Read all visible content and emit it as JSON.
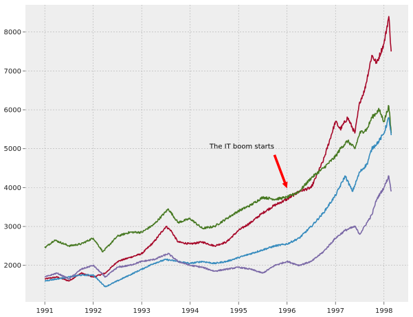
{
  "chart_data": {
    "type": "line",
    "title": "",
    "xlabel": "",
    "ylabel": "",
    "xlim": [
      1990.6,
      1998.5
    ],
    "ylim": [
      1060,
      8700
    ],
    "grid": true,
    "x_ticks": [
      1991,
      1992,
      1993,
      1994,
      1995,
      1996,
      1997,
      1998
    ],
    "x_tick_labels": [
      "1991",
      "1992",
      "1993",
      "1994",
      "1995",
      "1996",
      "1997",
      "1998"
    ],
    "y_ticks": [
      2000,
      3000,
      4000,
      5000,
      6000,
      7000,
      8000
    ],
    "y_tick_labels": [
      "2000",
      "3000",
      "4000",
      "5000",
      "6000",
      "7000",
      "8000"
    ],
    "colors": {
      "background": "#eeeeee",
      "grid": "#b2b2b2",
      "annotation_arrow": "#ff0000"
    },
    "series": [
      {
        "color": "#a60628",
        "x": [
          1991.0,
          1991.25,
          1991.5,
          1991.75,
          1992.0,
          1992.25,
          1992.5,
          1992.75,
          1993.0,
          1993.25,
          1993.5,
          1993.6,
          1993.75,
          1994.0,
          1994.25,
          1994.5,
          1994.75,
          1995.0,
          1995.25,
          1995.5,
          1995.75,
          1996.0,
          1996.25,
          1996.5,
          1996.75,
          1997.0,
          1997.1,
          1997.25,
          1997.4,
          1997.5,
          1997.6,
          1997.75,
          1997.85,
          1998.0,
          1998.1,
          1998.15
        ],
        "y": [
          1650,
          1700,
          1600,
          1800,
          1700,
          1800,
          2100,
          2200,
          2300,
          2600,
          3000,
          2900,
          2600,
          2550,
          2600,
          2500,
          2600,
          2900,
          3100,
          3350,
          3550,
          3700,
          3900,
          4000,
          4700,
          5700,
          5500,
          5800,
          5400,
          6200,
          6500,
          7400,
          7200,
          7700,
          8400,
          7500
        ]
      },
      {
        "color": "#467821",
        "x": [
          1991.0,
          1991.2,
          1991.5,
          1991.75,
          1992.0,
          1992.2,
          1992.5,
          1992.75,
          1993.0,
          1993.25,
          1993.55,
          1993.75,
          1994.0,
          1994.25,
          1994.5,
          1994.75,
          1995.0,
          1995.25,
          1995.5,
          1995.75,
          1996.0,
          1996.25,
          1996.5,
          1996.75,
          1997.0,
          1997.1,
          1997.25,
          1997.4,
          1997.5,
          1997.65,
          1997.75,
          1997.9,
          1998.0,
          1998.1,
          1998.15
        ],
        "y": [
          2450,
          2650,
          2500,
          2550,
          2700,
          2350,
          2750,
          2850,
          2850,
          3050,
          3450,
          3100,
          3200,
          2950,
          3000,
          3200,
          3400,
          3550,
          3750,
          3700,
          3750,
          3900,
          4250,
          4500,
          4800,
          5000,
          5200,
          5000,
          5400,
          5500,
          5800,
          6000,
          5700,
          6100,
          5400
        ]
      },
      {
        "color": "#348abd",
        "x": [
          1991.0,
          1991.25,
          1991.5,
          1991.75,
          1992.0,
          1992.25,
          1992.5,
          1992.75,
          1993.0,
          1993.25,
          1993.5,
          1993.75,
          1994.0,
          1994.25,
          1994.5,
          1994.75,
          1995.0,
          1995.25,
          1995.5,
          1995.75,
          1996.0,
          1996.25,
          1996.5,
          1996.75,
          1997.0,
          1997.2,
          1997.35,
          1997.5,
          1997.65,
          1997.75,
          1997.9,
          1998.0,
          1998.1,
          1998.15
        ],
        "y": [
          1600,
          1650,
          1700,
          1750,
          1750,
          1450,
          1600,
          1750,
          1900,
          2050,
          2150,
          2100,
          2050,
          2100,
          2050,
          2100,
          2200,
          2300,
          2400,
          2500,
          2550,
          2700,
          3000,
          3350,
          3800,
          4300,
          3900,
          4400,
          4600,
          5000,
          5200,
          5400,
          5800,
          5350
        ]
      },
      {
        "color": "#7a68a6",
        "x": [
          1991.0,
          1991.25,
          1991.5,
          1991.75,
          1992.0,
          1992.25,
          1992.5,
          1992.75,
          1993.0,
          1993.25,
          1993.55,
          1993.75,
          1994.0,
          1994.25,
          1994.5,
          1994.75,
          1995.0,
          1995.25,
          1995.5,
          1995.75,
          1996.0,
          1996.25,
          1996.5,
          1996.75,
          1997.0,
          1997.2,
          1997.4,
          1997.5,
          1997.65,
          1997.75,
          1997.85,
          1998.0,
          1998.1,
          1998.15
        ],
        "y": [
          1700,
          1800,
          1650,
          1900,
          2000,
          1700,
          1950,
          2000,
          2100,
          2150,
          2300,
          2100,
          2000,
          1950,
          1850,
          1900,
          1950,
          1900,
          1800,
          2000,
          2100,
          2000,
          2100,
          2350,
          2700,
          2900,
          3000,
          2800,
          3100,
          3300,
          3700,
          4000,
          4300,
          3900
        ]
      }
    ],
    "annotations": [
      {
        "text": "The IT boom starts",
        "xy": [
          1996.0,
          3980
        ],
        "xytext": [
          1994.4,
          5000
        ]
      }
    ]
  }
}
